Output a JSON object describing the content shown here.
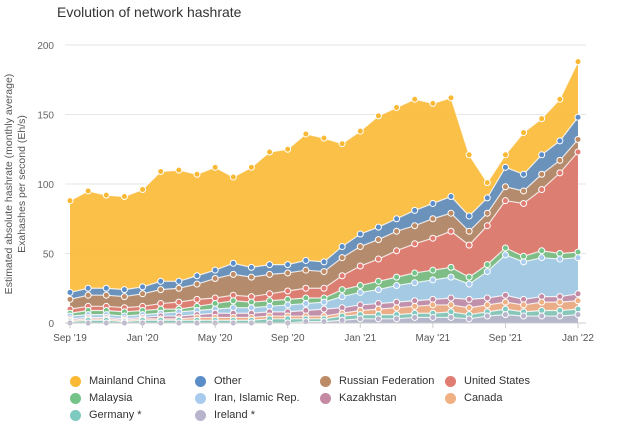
{
  "chart_data": {
    "type": "area",
    "stacked": true,
    "title": "Evolution of network hashrate",
    "ylabel_line1": "Estimated absolute hashrate (monthly average)",
    "ylabel_line2": "Exahashes per second (Eh/s)",
    "ylim": [
      0,
      200
    ],
    "yticks": [
      0,
      50,
      100,
      150,
      200
    ],
    "xtick_labels": [
      {
        "label": "Sep '19",
        "index": 0
      },
      {
        "label": "Jan '20",
        "index": 4
      },
      {
        "label": "May '20",
        "index": 8
      },
      {
        "label": "Sep '20",
        "index": 12
      },
      {
        "label": "Jan '21",
        "index": 16
      },
      {
        "label": "May '21",
        "index": 20
      },
      {
        "label": "Sep '21",
        "index": 24
      },
      {
        "label": "Jan '22",
        "index": 28
      }
    ],
    "months": [
      "Sep 2019",
      "Oct 2019",
      "Nov 2019",
      "Dec 2019",
      "Jan 2020",
      "Feb 2020",
      "Mar 2020",
      "Apr 2020",
      "May 2020",
      "Jun 2020",
      "Jul 2020",
      "Aug 2020",
      "Sep 2020",
      "Oct 2020",
      "Nov 2020",
      "Dec 2020",
      "Jan 2021",
      "Feb 2021",
      "Mar 2021",
      "Apr 2021",
      "May 2021",
      "Jun 2021",
      "Jul 2021",
      "Aug 2021",
      "Sep 2021",
      "Oct 2021",
      "Nov 2021",
      "Dec 2021",
      "Jan 2022"
    ],
    "totals": {
      "Mainland China": [
        88,
        95,
        92,
        91,
        96,
        109,
        110,
        107,
        112,
        105,
        112,
        123,
        125,
        136,
        133,
        129,
        138,
        149,
        155,
        161,
        158,
        162,
        121,
        101,
        121,
        137,
        147,
        161,
        188
      ],
      "Other": [
        22,
        25,
        25,
        24,
        26,
        30,
        30,
        34,
        38,
        43,
        40,
        42,
        42,
        45,
        44,
        55,
        64,
        69,
        75,
        81,
        86,
        91,
        77,
        90,
        112,
        107,
        121,
        131,
        148
      ],
      "Russian Federation": [
        17,
        20,
        20,
        19,
        21,
        24,
        25,
        28,
        32,
        35,
        33,
        35,
        36,
        38,
        37,
        47,
        55,
        60,
        66,
        70,
        75,
        79,
        66,
        79,
        98,
        95,
        107,
        117,
        132
      ],
      "United States": [
        10,
        12,
        12,
        11,
        12,
        14,
        15,
        17,
        18,
        20,
        19,
        21,
        23,
        25,
        25,
        34,
        41,
        46,
        52,
        57,
        61,
        66,
        56,
        70,
        88,
        86,
        96,
        108,
        123
      ],
      "Malaysia": [
        7,
        9,
        9,
        8,
        9,
        10,
        10,
        12,
        14,
        16,
        15,
        16,
        17,
        18,
        18,
        24,
        27,
        30,
        33,
        36,
        38,
        40,
        33,
        42,
        54,
        48,
        52,
        50,
        51
      ],
      "Iran, Islamic Rep.": [
        5,
        6,
        6,
        5,
        6,
        7,
        8,
        9,
        10,
        11,
        11,
        12,
        13,
        14,
        15,
        19,
        22,
        24,
        27,
        29,
        31,
        33,
        28,
        37,
        49,
        44,
        47,
        46,
        47
      ],
      "Kazakhstan": [
        3,
        4,
        4,
        3,
        4,
        5,
        5,
        6,
        7,
        7,
        7,
        8,
        8,
        9,
        10,
        11,
        13,
        14,
        15,
        16,
        17,
        18,
        17,
        18,
        20,
        17,
        19,
        19,
        21
      ],
      "Canada": [
        2,
        3,
        3,
        2,
        3,
        3,
        3,
        4,
        4,
        4,
        4,
        5,
        5,
        5,
        5,
        7,
        9,
        10,
        11,
        12,
        13,
        13,
        11,
        13,
        15,
        13,
        15,
        15,
        16
      ],
      "Germany *": [
        1,
        2,
        2,
        1,
        2,
        2,
        2,
        2,
        2,
        2,
        2,
        3,
        3,
        3,
        3,
        5,
        6,
        6,
        6,
        7,
        7,
        8,
        6,
        8,
        10,
        8,
        9,
        9,
        10
      ],
      "Ireland *": [
        0,
        0,
        0,
        0,
        0,
        0,
        0,
        0,
        0,
        0,
        0,
        0,
        0,
        1,
        1,
        2,
        3,
        3,
        3,
        4,
        4,
        4,
        3,
        5,
        6,
        5,
        5,
        5,
        6
      ]
    },
    "draw_order": [
      "Mainland China",
      "Other",
      "Russian Federation",
      "United States",
      "Malaysia",
      "Iran, Islamic Rep.",
      "Kazakhstan",
      "Canada",
      "Germany *",
      "Ireland *"
    ],
    "legend": [
      {
        "name": "Mainland China",
        "color": "#f9b934"
      },
      {
        "name": "Other",
        "color": "#5b8dc8"
      },
      {
        "name": "Russian Federation",
        "color": "#bd8b65"
      },
      {
        "name": "United States",
        "color": "#e17c73"
      },
      {
        "name": "Malaysia",
        "color": "#74c489"
      },
      {
        "name": "Iran, Islamic Rep.",
        "color": "#a9cbee"
      },
      {
        "name": "Kazakhstan",
        "color": "#c48aa3"
      },
      {
        "name": "Canada",
        "color": "#efb084"
      },
      {
        "name": "Germany *",
        "color": "#7ec9c0"
      },
      {
        "name": "Ireland *",
        "color": "#b9b4cc"
      }
    ]
  }
}
